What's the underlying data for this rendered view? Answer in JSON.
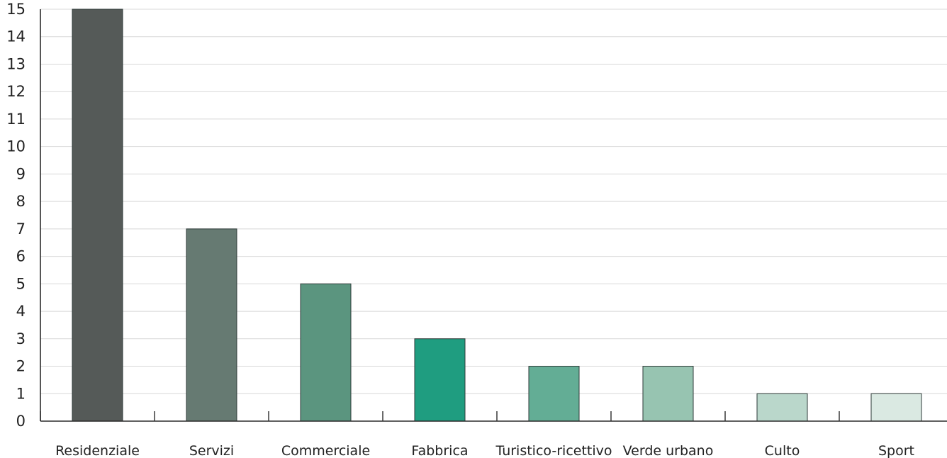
{
  "chart_data": {
    "type": "bar",
    "categories": [
      "Residenziale",
      "Servizi",
      "Commerciale",
      "Fabbrica",
      "Turistico-ricettivo",
      "Verde urbano",
      "Culto",
      "Sport"
    ],
    "values": [
      15,
      7,
      5,
      3,
      2,
      2,
      1,
      1
    ],
    "colors": [
      "#555a58",
      "#667a72",
      "#5b957f",
      "#1f9d80",
      "#63ad95",
      "#97c4b1",
      "#bad7cb",
      "#dae9e2"
    ],
    "title": "",
    "xlabel": "",
    "ylabel": "",
    "ylim": [
      0,
      15
    ],
    "yticks": [
      0,
      1,
      2,
      3,
      4,
      5,
      6,
      7,
      8,
      9,
      10,
      11,
      12,
      13,
      14,
      15
    ],
    "grid": true,
    "legend": "none"
  }
}
